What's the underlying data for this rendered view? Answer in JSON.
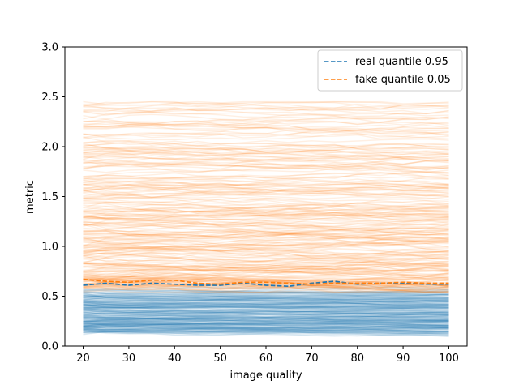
{
  "chart_data": {
    "type": "line",
    "xlabel": "image quality",
    "ylabel": "metric",
    "xlim": [
      16,
      104
    ],
    "ylim": [
      0,
      3
    ],
    "x": [
      20,
      25,
      30,
      35,
      40,
      45,
      50,
      55,
      60,
      65,
      70,
      75,
      80,
      85,
      90,
      95,
      100
    ],
    "xticks": [
      "20",
      "30",
      "40",
      "50",
      "60",
      "70",
      "80",
      "90",
      "100"
    ],
    "yticks": [
      "0.0",
      "0.5",
      "1.0",
      "1.5",
      "2.0",
      "2.5",
      "3.0"
    ],
    "grid": false,
    "legend_position": "top-right",
    "series": [
      {
        "name": "real quantile 0.95",
        "color": "#1f77b4",
        "style": "dashed",
        "values": [
          0.61,
          0.63,
          0.61,
          0.63,
          0.62,
          0.61,
          0.61,
          0.63,
          0.61,
          0.6,
          0.63,
          0.65,
          0.62,
          0.63,
          0.63,
          0.62,
          0.62
        ]
      },
      {
        "name": "fake quantile 0.05",
        "color": "#ff7f0e",
        "style": "dashed",
        "values": [
          0.67,
          0.65,
          0.64,
          0.66,
          0.66,
          0.63,
          0.62,
          0.64,
          0.64,
          0.63,
          0.62,
          0.63,
          0.63,
          0.63,
          0.64,
          0.63,
          0.63
        ]
      }
    ],
    "background_bundles": [
      {
        "name": "real",
        "color": "#1f77b4",
        "opacity": 0.1,
        "count": 260,
        "min": 0.05,
        "max": 0.62,
        "center": 0.3
      },
      {
        "name": "fake",
        "color": "#ff7f0e",
        "opacity": 0.12,
        "count": 260,
        "min": 0.6,
        "max": 2.45,
        "center": 1.1
      }
    ]
  }
}
